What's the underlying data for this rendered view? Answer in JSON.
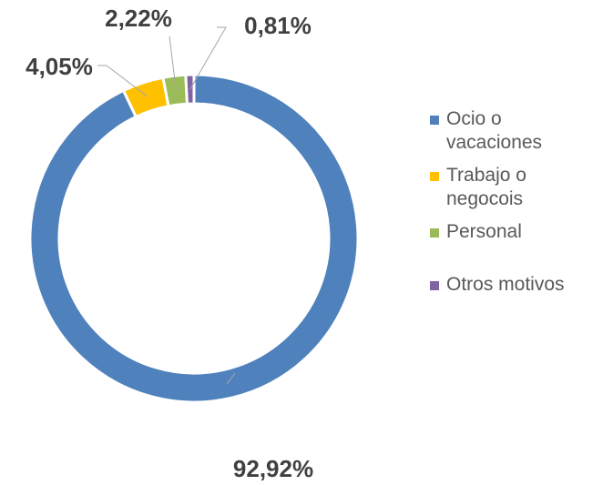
{
  "chart_data": {
    "type": "pie",
    "categories": [
      "Ocio o vacaciones",
      "Trabajo o negocois",
      "Personal",
      "Otros motivos"
    ],
    "values": [
      92.92,
      4.05,
      2.22,
      0.81
    ],
    "value_labels": [
      "92,92%",
      "4,05%",
      "2,22%",
      "0,81%"
    ],
    "colors": [
      "#4f81bd",
      "#ffc000",
      "#9bbb59",
      "#8064a2"
    ],
    "donut": true,
    "legend": "right"
  }
}
